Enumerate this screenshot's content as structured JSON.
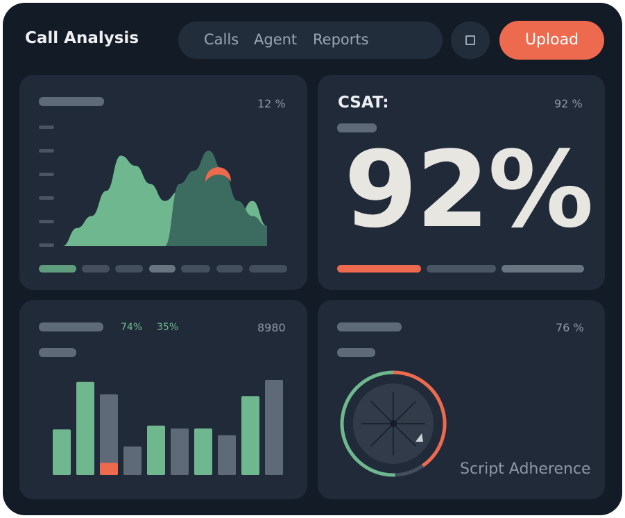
{
  "app": {
    "title": "Call Analysis"
  },
  "nav": {
    "items": [
      "Calls",
      "Agent",
      "Reports"
    ]
  },
  "header": {
    "square_icon": "square-icon",
    "upload_label": "Upload"
  },
  "colors": {
    "accent": "#ee6a4e",
    "green": "#6fb88f",
    "dark_green": "#3c6b5f",
    "muted": "#5f6a78",
    "card": "#202a39",
    "background": "#131b26"
  },
  "cards": {
    "area": {
      "value": "12 %"
    },
    "csat": {
      "label": "CSAT:",
      "value": "92 %",
      "big": "92%",
      "fraction": 0.92
    },
    "bars": {
      "stat_a": "74%",
      "stat_b": "35%",
      "value": "8980"
    },
    "script": {
      "value": "76 %",
      "label": "Script Adherence",
      "fraction": 0.76
    }
  },
  "chart_data": [
    {
      "type": "area",
      "series": [
        {
          "values": [
            0.0,
            0.18,
            0.3,
            0.55,
            0.9,
            0.8,
            0.62,
            0.45,
            0.55,
            0.4,
            0.45,
            0.36,
            0.28,
            0.45,
            0.2
          ]
        },
        {
          "values": [
            0,
            0,
            0,
            0,
            0,
            0,
            0,
            0,
            0.62,
            0.75,
            0.95,
            0.75,
            0.45,
            0.3,
            0.2
          ]
        }
      ],
      "accent_point": 0.82
    },
    {
      "type": "bar",
      "values": [
        0.48,
        0.98,
        0.85,
        0.3,
        0.52,
        0.49,
        0.49,
        0.42,
        0.83,
        1.0
      ],
      "colors": [
        "green",
        "green",
        "muted",
        "muted",
        "green",
        "muted",
        "green",
        "muted",
        "green",
        "muted"
      ],
      "highlight_index": 2,
      "highlight_fraction": 0.15
    }
  ]
}
